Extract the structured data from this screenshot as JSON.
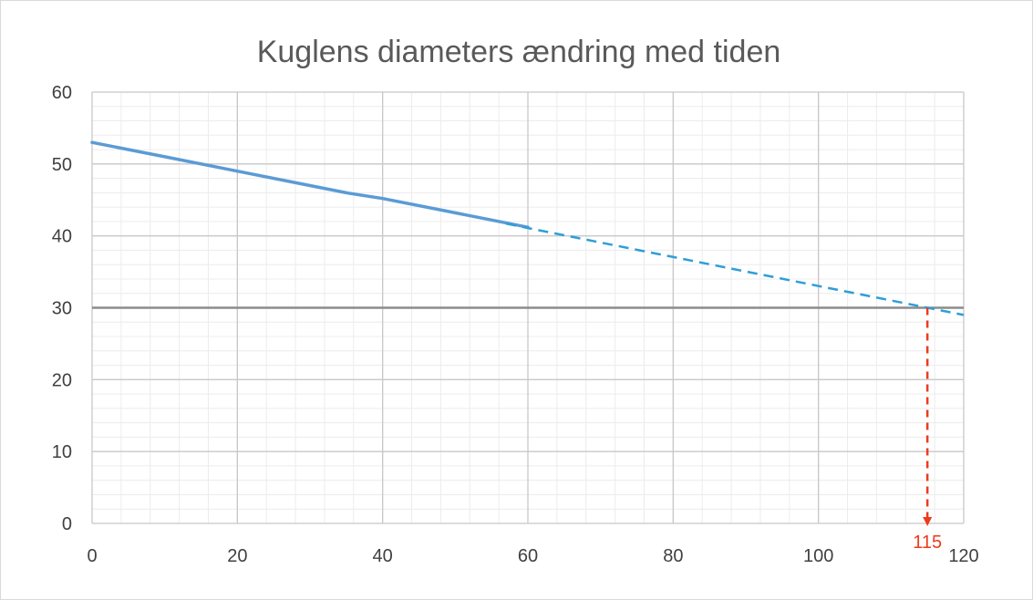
{
  "chart_data": {
    "type": "line",
    "title": "Kuglens diameters ændring med tiden",
    "xlabel": "",
    "ylabel": "",
    "xlim": [
      0,
      120
    ],
    "ylim": [
      0,
      60
    ],
    "x_ticks": [
      0,
      20,
      40,
      60,
      80,
      100,
      120
    ],
    "y_ticks": [
      0,
      10,
      20,
      30,
      40,
      50,
      60
    ],
    "grid": true,
    "legend": "none",
    "series": [
      {
        "style": "solid",
        "color": "#5b9bd5",
        "points": [
          [
            0,
            53
          ],
          [
            10,
            51
          ],
          [
            20,
            49
          ],
          [
            30,
            47
          ],
          [
            35,
            46
          ],
          [
            40,
            45.2
          ],
          [
            50,
            43.2
          ],
          [
            60,
            41.2
          ]
        ]
      },
      {
        "style": "dashed",
        "color": "#2e9fd6",
        "points": [
          [
            57,
            41.7
          ],
          [
            120,
            29
          ]
        ]
      }
    ],
    "reference_line": {
      "y": 30,
      "color": "#8c8c8c"
    },
    "annotation": {
      "x": 115,
      "y": 30,
      "label": "115",
      "color": "#ee3a1c"
    }
  }
}
